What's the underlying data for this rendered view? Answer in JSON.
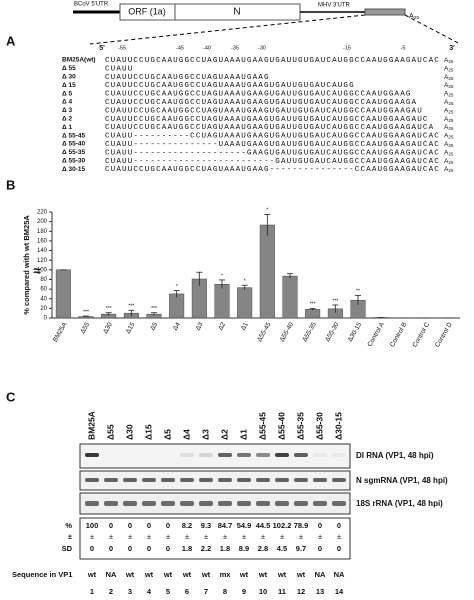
{
  "panel_a": {
    "label": "A",
    "diagram": {
      "utr5": "BCoV 5'UTR",
      "orf": "ORF (1a)",
      "n": "N",
      "utr3": "MHV 3'UTR",
      "tail": "A",
      "tail_sub": "25"
    },
    "positions": [
      "5'",
      "-55",
      "-45",
      "-40",
      "-35",
      "-30",
      "-15",
      "-5",
      "3'"
    ],
    "rows": [
      {
        "name": "BM25A(wt)",
        "seq": "CUAUUCCUGCAAUGGCCUAGUAAAUGAAGUGAUUGUGAUCAUGGCCAAUGGAAGAUCAC"
      },
      {
        "name": "Δ 55",
        "seq": "CUAUU"
      },
      {
        "name": "Δ 30",
        "seq": "CUAUUCCUGCAAUGGCCUAGUAAAUGAAG"
      },
      {
        "name": "Δ 15",
        "seq": "CUAUUCCUGCAAUGGCCUAGUAAAUGAAGUGAUUGUGAUCAUGG"
      },
      {
        "name": "Δ 5",
        "seq": "CUAUUCCUGCAAUGGCCUAGUAAAUGAAGUGAUUGUGAUCAUGGCCAAUGGAAG"
      },
      {
        "name": "Δ 4",
        "seq": "CUAUUCCUGCAAUGGCCUAGUAAAUGAAGUGAUUGUGAUCAUGGCCAAUGGAAGA"
      },
      {
        "name": "Δ 3",
        "seq": "CUAUUCCUGCAAUGGCCUAGUAAAUGAAGUGAUUGUGAUCAUGGCCAAUGGAAGAU"
      },
      {
        "name": "Δ 2",
        "seq": "CUAUUCCUGCAAUGGCCUAGUAAAUGAAGUGAUUGUGAUCAUGGCCAAUGGAAGAUC"
      },
      {
        "name": "Δ 1",
        "seq": "CUAUUCCUGCAAUGGCCUAGUAAAUGAAGUGAUUGUGAUCAUGGCCAAUGGAAGAUCA"
      },
      {
        "name": "Δ 55-45",
        "seq": "CUAUU----------CCUAGUAAAUGAAGUGAUUGUGAUCAUGGCCAAUGGAAGAUCAC"
      },
      {
        "name": "Δ 55-40",
        "seq": "CUAUU---------------UAAAUGAAGUGAUUGUGAUCAUGGCCAAUGGAAGAUCAC"
      },
      {
        "name": "Δ 55-35",
        "seq": "CUAUU--------------------GAAGUGAUUGUGAUCAUGGCCAAUGGAAGAUCAC"
      },
      {
        "name": "Δ 55-30",
        "seq": "CUAUU-------------------------GAUUGUGAUCAUGGCCAAUGGAAGAUCAC"
      },
      {
        "name": "Δ 30-15",
        "seq": "CUAUUCCUGCAAUGGCCUAGUAAAUGAAG---------------CCAAUGGAAGAUCAC"
      }
    ]
  },
  "chart_data": {
    "type": "bar",
    "panel_label": "B",
    "ylabel": "% compared with wt BM25A",
    "categories": [
      "BM25A",
      "Δ55",
      "Δ30",
      "Δ15",
      "Δ5",
      "Δ4",
      "Δ3",
      "Δ2",
      "Δ1",
      "Δ55-45",
      "Δ55-40",
      "Δ55-35",
      "Δ55-30",
      "Δ30-15",
      "Control A",
      "Control B",
      "Control C",
      "Control D"
    ],
    "values": [
      100,
      3,
      8,
      10,
      8,
      50,
      81,
      70,
      63,
      193,
      87,
      18,
      19,
      37,
      1,
      0,
      0,
      0
    ],
    "errors": [
      0,
      1,
      3,
      6,
      3,
      7,
      14,
      9,
      5,
      22,
      5,
      2,
      8,
      10,
      0,
      0,
      0,
      0
    ],
    "annotations": [
      null,
      "***",
      "***",
      "***",
      "***",
      "*",
      null,
      "*",
      "*",
      "*",
      null,
      "***",
      "***",
      "**",
      null,
      null,
      null,
      null
    ],
    "axis_break_label": "≈",
    "color": "#858585",
    "ylim": [
      0,
      220
    ],
    "yticks": [
      0,
      20,
      40,
      60,
      80,
      100,
      120,
      140,
      160,
      180,
      200,
      220
    ]
  },
  "panel_c": {
    "label": "C",
    "lanes": [
      "BM25A",
      "Δ55",
      "Δ30",
      "Δ15",
      "Δ5",
      "Δ4",
      "Δ3",
      "Δ2",
      "Δ1",
      "Δ55-45",
      "Δ55-40",
      "Δ55-35",
      "Δ55-30",
      "Δ30-15"
    ],
    "blots": [
      "DI RNA (VP1, 48 hpi)",
      "N sgmRNA (VP1, 48 hpi)",
      "18S rRNA (VP1, 48 hpi)"
    ],
    "row_labels": [
      "%",
      "±",
      "SD"
    ],
    "percent": [
      "100",
      "0",
      "0",
      "0",
      "0",
      "8.2",
      "9.3",
      "84.7",
      "54.9",
      "44.5",
      "102.2",
      "78.9",
      "0",
      "0"
    ],
    "pm": "±",
    "sd": [
      "0",
      "0",
      "0",
      "0",
      "0",
      "1.8",
      "2.2",
      "1.8",
      "8.9",
      "2.8",
      "4.5",
      "9.7",
      "0",
      "0"
    ],
    "sequence_label": "Sequence in VP1",
    "sequence": [
      "wt",
      "NA",
      "wt",
      "wt",
      "wt",
      "wt",
      "wt",
      "mx",
      "wt",
      "wt",
      "wt",
      "wt",
      "NA",
      "NA"
    ],
    "lane_numbers": [
      "1",
      "2",
      "3",
      "4",
      "5",
      "6",
      "7",
      "8",
      "9",
      "10",
      "11",
      "12",
      "13",
      "14"
    ]
  }
}
